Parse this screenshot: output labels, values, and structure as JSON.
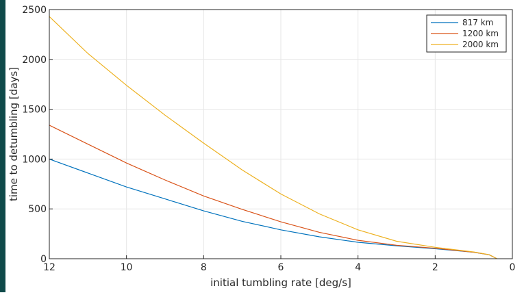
{
  "chart_data": {
    "type": "line",
    "xlabel": "initial tumbling rate [deg/s]",
    "ylabel": "time to detumbling [days]",
    "xlim": [
      12,
      0
    ],
    "ylim": [
      0,
      2500
    ],
    "x_reversed": true,
    "grid": true,
    "legend_position": "top-right",
    "x_ticks": [
      12,
      10,
      8,
      6,
      4,
      2,
      0
    ],
    "y_ticks": [
      0,
      500,
      1000,
      1500,
      2000,
      2500
    ],
    "series": [
      {
        "name": "817 km",
        "color": "#0072BD",
        "x": [
          12,
          11,
          10,
          9,
          8,
          7,
          6,
          5,
          4,
          3,
          2,
          1,
          0.6,
          0.4
        ],
        "y": [
          1000,
          860,
          720,
          600,
          480,
          375,
          290,
          220,
          165,
          130,
          100,
          65,
          40,
          0
        ]
      },
      {
        "name": "1200 km",
        "color": "#D95319",
        "x": [
          12,
          11,
          10,
          9,
          8,
          7,
          6,
          5,
          4,
          3,
          2,
          1,
          0.6,
          0.4
        ],
        "y": [
          1340,
          1150,
          960,
          790,
          630,
          495,
          370,
          265,
          185,
          135,
          105,
          65,
          40,
          0
        ]
      },
      {
        "name": "2000 km",
        "color": "#EDB120",
        "x": [
          12,
          11,
          10,
          9,
          8,
          7,
          6,
          5,
          4,
          3,
          2,
          1,
          0.6,
          0.4
        ],
        "y": [
          2430,
          2060,
          1740,
          1440,
          1160,
          890,
          650,
          450,
          290,
          175,
          115,
          68,
          40,
          0
        ]
      }
    ]
  }
}
